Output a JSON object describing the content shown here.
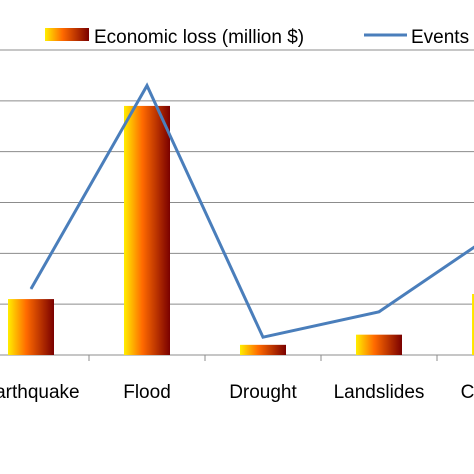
{
  "chart_data": {
    "type": "bar",
    "categories": [
      "Earthquake",
      "Flood",
      "Drought",
      "Landslides",
      "Cyclone"
    ],
    "series": [
      {
        "name": "Economic loss (million $)",
        "type": "bar",
        "values": [
          11,
          49,
          2,
          4,
          12
        ],
        "color_light": "#ffee00",
        "color_mid": "#ff6a00",
        "color_dark": "#7a0000"
      },
      {
        "name": "Events",
        "type": "line",
        "values": [
          13,
          53,
          3.5,
          8.5,
          24
        ],
        "color": "#4a7ebb"
      }
    ],
    "ylim": [
      0,
      60
    ],
    "grid": true,
    "legend": "top",
    "title": "",
    "xlabel": "",
    "ylabel": ""
  }
}
